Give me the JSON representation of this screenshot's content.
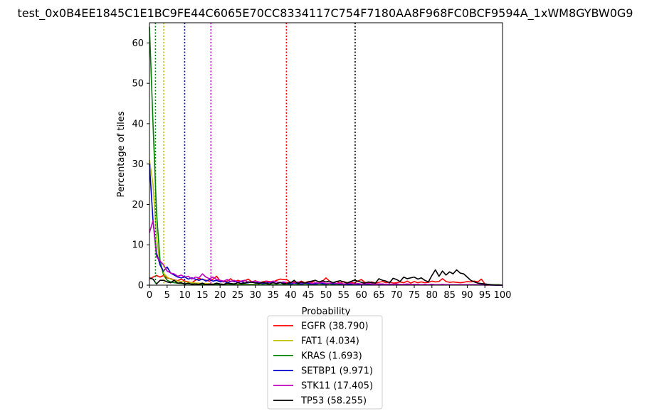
{
  "chart_data": {
    "type": "line",
    "title": "test_0x0B4EE1845C1E1BC9FE44C6065E70CC8334117C754F7180AA8F968FC0BCF9594A_1xWM8GYBW0G9",
    "xlabel": "Probability",
    "ylabel": "Percentage of tiles",
    "xlim": [
      0,
      100
    ],
    "ylim": [
      0,
      65
    ],
    "xticks": [
      0,
      5,
      10,
      15,
      20,
      25,
      30,
      35,
      40,
      45,
      50,
      55,
      60,
      65,
      70,
      75,
      80,
      85,
      90,
      95,
      100
    ],
    "yticks": [
      0,
      10,
      20,
      30,
      40,
      50,
      60
    ],
    "grid": false,
    "legend_position": "below",
    "x": [
      0,
      1,
      2,
      3,
      4,
      5,
      6,
      7,
      8,
      9,
      10,
      11,
      12,
      13,
      14,
      15,
      16,
      17,
      18,
      19,
      20,
      21,
      22,
      23,
      24,
      25,
      26,
      27,
      28,
      29,
      30,
      31,
      32,
      33,
      34,
      35,
      36,
      37,
      38,
      39,
      40,
      41,
      42,
      43,
      44,
      45,
      46,
      47,
      48,
      49,
      50,
      51,
      52,
      53,
      54,
      55,
      56,
      57,
      58,
      59,
      60,
      61,
      62,
      63,
      64,
      65,
      66,
      67,
      68,
      69,
      70,
      71,
      72,
      73,
      74,
      75,
      76,
      77,
      78,
      79,
      80,
      81,
      82,
      83,
      84,
      85,
      86,
      87,
      88,
      89,
      90,
      91,
      92,
      93,
      94,
      95,
      96,
      97,
      98,
      99,
      100
    ],
    "series": [
      {
        "name": "EGFR (38.790)",
        "color": "#ff0000",
        "threshold": 38.79,
        "values": [
          1.5,
          2.0,
          2.4,
          2.0,
          2.4,
          1.8,
          1.6,
          1.3,
          1.1,
          1.5,
          1.0,
          0.8,
          0.6,
          1.2,
          1.7,
          1.4,
          1.2,
          1.0,
          1.5,
          2.2,
          1.1,
          0.8,
          1.0,
          1.6,
          0.8,
          1.2,
          0.9,
          1.1,
          1.5,
          0.8,
          1.1,
          0.6,
          0.8,
          1.0,
          0.9,
          0.8,
          1.2,
          1.5,
          1.4,
          1.3,
          0.7,
          0.8,
          0.6,
          1.0,
          0.6,
          0.9,
          0.7,
          1.2,
          0.8,
          1.0,
          1.8,
          1.0,
          0.6,
          0.9,
          0.5,
          0.9,
          0.6,
          0.8,
          0.5,
          1.0,
          1.4,
          0.7,
          0.6,
          0.8,
          0.5,
          0.7,
          0.9,
          0.6,
          0.8,
          0.5,
          0.6,
          0.8,
          0.6,
          1.0,
          0.5,
          0.9,
          0.6,
          0.8,
          0.6,
          0.7,
          1.0,
          0.8,
          0.9,
          1.6,
          0.9,
          0.7,
          0.8,
          0.7,
          0.6,
          0.7,
          0.9,
          0.8,
          1.0,
          0.8,
          1.5,
          0.3,
          0.1,
          0.1,
          0.0,
          0.0,
          0.0
        ]
      },
      {
        "name": "FAT1 (4.034)",
        "color": "#bfbf00",
        "threshold": 4.034,
        "values": [
          31.0,
          25.0,
          12.0,
          5.0,
          3.0,
          2.0,
          1.5,
          1.2,
          1.0,
          0.9,
          0.8,
          0.7,
          0.6,
          0.5,
          0.5,
          0.4,
          0.4,
          0.3,
          0.3,
          0.3,
          0.3,
          0.2,
          0.2,
          0.2,
          0.2,
          0.2,
          0.2,
          0.2,
          0.2,
          0.2,
          0.2,
          0.1,
          0.1,
          0.1,
          0.1,
          0.1,
          0.1,
          0.1,
          0.1,
          0.1,
          0.1,
          0.1,
          0.1,
          0.1,
          0.1,
          0.1,
          0.1,
          0.1,
          0.1,
          0.1,
          0.1,
          0.1,
          0.1,
          0.1,
          0.1,
          0.1,
          0.1,
          0.1,
          0.1,
          0.1,
          0.1,
          0.1,
          0.1,
          0.1,
          0.1,
          0.1,
          0.1,
          0.1,
          0.1,
          0.1,
          0.1,
          0.1,
          0.1,
          0.1,
          0.1,
          0.1,
          0.1,
          0.1,
          0.1,
          0.1,
          0.1,
          0.1,
          0.1,
          0.1,
          0.1,
          0.1,
          0.1,
          0.1,
          0.1,
          0.1,
          0.1,
          0.1,
          0.1,
          0.1,
          0.1,
          0.1,
          0.1,
          0.1,
          0.1,
          0.1,
          0.0
        ]
      },
      {
        "name": "KRAS (1.693)",
        "color": "#008000",
        "threshold": 1.693,
        "values": [
          64.0,
          40.0,
          18.0,
          6.0,
          2.5,
          1.2,
          0.8,
          0.6,
          0.5,
          0.4,
          0.4,
          0.3,
          0.3,
          0.3,
          0.2,
          0.2,
          0.2,
          0.2,
          0.2,
          0.2,
          0.2,
          0.1,
          0.1,
          0.1,
          0.1,
          0.1,
          0.1,
          0.1,
          0.1,
          0.1,
          0.1,
          0.1,
          0.1,
          0.1,
          0.1,
          0.1,
          0.1,
          0.1,
          0.1,
          0.1,
          0.1,
          0.1,
          0.1,
          0.1,
          0.1,
          0.1,
          0.1,
          0.1,
          0.1,
          0.1,
          0.1,
          0.1,
          0.1,
          0.1,
          0.1,
          0.1,
          0.1,
          0.1,
          0.1,
          0.1,
          0.1,
          0.1,
          0.1,
          0.1,
          0.1,
          0.1,
          0.1,
          0.1,
          0.1,
          0.1,
          0.1,
          0.1,
          0.1,
          0.1,
          0.1,
          0.1,
          0.1,
          0.1,
          0.1,
          0.1,
          0.1,
          0.1,
          0.1,
          0.1,
          0.1,
          0.1,
          0.1,
          0.1,
          0.1,
          0.1,
          0.1,
          0.1,
          0.1,
          0.1,
          0.1,
          0.1,
          0.1,
          0.1,
          0.1,
          0.1,
          0.0
        ]
      },
      {
        "name": "SETBP1 (9.971)",
        "color": "#0000cc",
        "threshold": 9.971,
        "values": [
          30.0,
          16.0,
          8.0,
          5.0,
          3.5,
          4.5,
          3.0,
          2.5,
          2.0,
          1.8,
          2.0,
          1.5,
          1.8,
          1.5,
          1.2,
          1.5,
          1.0,
          1.4,
          1.0,
          1.2,
          0.8,
          1.0,
          0.6,
          0.9,
          1.0,
          0.7,
          0.9,
          0.5,
          0.6,
          0.8,
          0.5,
          0.6,
          0.4,
          0.5,
          0.7,
          0.6,
          0.4,
          0.6,
          0.5,
          0.4,
          0.3,
          0.5,
          0.4,
          0.3,
          0.5,
          0.4,
          0.3,
          0.3,
          0.5,
          0.4,
          0.3,
          0.5,
          0.3,
          0.4,
          0.3,
          0.3,
          0.2,
          0.3,
          0.3,
          0.2,
          0.3,
          0.2,
          0.3,
          0.2,
          0.2,
          0.3,
          0.2,
          0.2,
          0.2,
          0.2,
          0.3,
          0.2,
          0.2,
          0.2,
          0.1,
          0.2,
          0.2,
          0.1,
          0.1,
          0.1,
          0.2,
          0.1,
          0.1,
          0.1,
          0.1,
          0.1,
          0.1,
          0.1,
          0.1,
          0.1,
          0.1,
          0.1,
          0.1,
          0.1,
          0.1,
          0.1,
          0.1,
          0.0,
          0.0,
          0.0,
          0.0
        ]
      },
      {
        "name": "STK11 (17.405)",
        "color": "#bf00bf",
        "threshold": 17.405,
        "values": [
          13.0,
          16.0,
          7.0,
          6.0,
          5.0,
          3.5,
          3.0,
          2.8,
          2.2,
          2.5,
          2.0,
          2.2,
          1.5,
          2.0,
          1.8,
          2.8,
          2.0,
          1.6,
          2.0,
          1.4,
          1.2,
          1.0,
          1.4,
          0.9,
          1.2,
          0.8,
          1.0,
          1.2,
          0.7,
          0.9,
          1.0,
          0.8,
          0.6,
          0.9,
          0.7,
          1.0,
          0.8,
          0.6,
          0.8,
          0.6,
          0.7,
          0.5,
          0.8,
          0.6,
          0.5,
          0.7,
          0.4,
          0.6,
          0.5,
          0.7,
          0.4,
          0.5,
          0.6,
          0.4,
          0.5,
          0.3,
          0.4,
          0.5,
          0.3,
          0.4,
          0.3,
          0.3,
          0.4,
          0.3,
          0.2,
          0.3,
          0.3,
          0.2,
          0.3,
          0.2,
          0.3,
          0.2,
          0.2,
          0.3,
          0.2,
          0.2,
          0.2,
          0.1,
          0.2,
          0.1,
          0.2,
          0.1,
          0.1,
          0.2,
          0.1,
          0.1,
          0.1,
          0.1,
          0.1,
          0.1,
          0.1,
          0.1,
          0.1,
          0.1,
          0.1,
          0.0,
          0.0,
          0.0,
          0.0,
          0.0,
          0.0
        ]
      },
      {
        "name": "TP53 (58.255)",
        "color": "#000000",
        "threshold": 58.255,
        "values": [
          1.8,
          1.5,
          0.3,
          1.2,
          1.2,
          0.8,
          0.6,
          1.2,
          0.5,
          0.6,
          0.2,
          0.5,
          0.2,
          0.3,
          0.2,
          0.5,
          0.1,
          0.3,
          0.2,
          0.5,
          0.3,
          0.2,
          0.5,
          0.4,
          0.3,
          0.6,
          0.4,
          0.5,
          0.8,
          0.7,
          0.6,
          0.4,
          0.7,
          0.5,
          0.3,
          0.6,
          0.4,
          0.7,
          0.3,
          0.5,
          0.6,
          1.2,
          0.4,
          0.8,
          0.5,
          0.8,
          1.0,
          1.2,
          0.8,
          1.1,
          0.8,
          1.0,
          0.6,
          0.9,
          1.1,
          0.8,
          0.5,
          0.9,
          1.2,
          1.0,
          0.7,
          0.5,
          0.8,
          0.6,
          0.5,
          1.6,
          1.2,
          1.0,
          0.6,
          1.7,
          1.4,
          0.9,
          2.0,
          1.6,
          1.8,
          2.0,
          1.5,
          1.8,
          1.2,
          0.8,
          2.4,
          3.8,
          2.2,
          3.5,
          2.5,
          3.3,
          2.8,
          3.8,
          3.0,
          2.8,
          2.0,
          1.2,
          0.8,
          0.5,
          0.4,
          0.3,
          0.2,
          0.1,
          0.0,
          0.0,
          0.0
        ]
      }
    ]
  }
}
